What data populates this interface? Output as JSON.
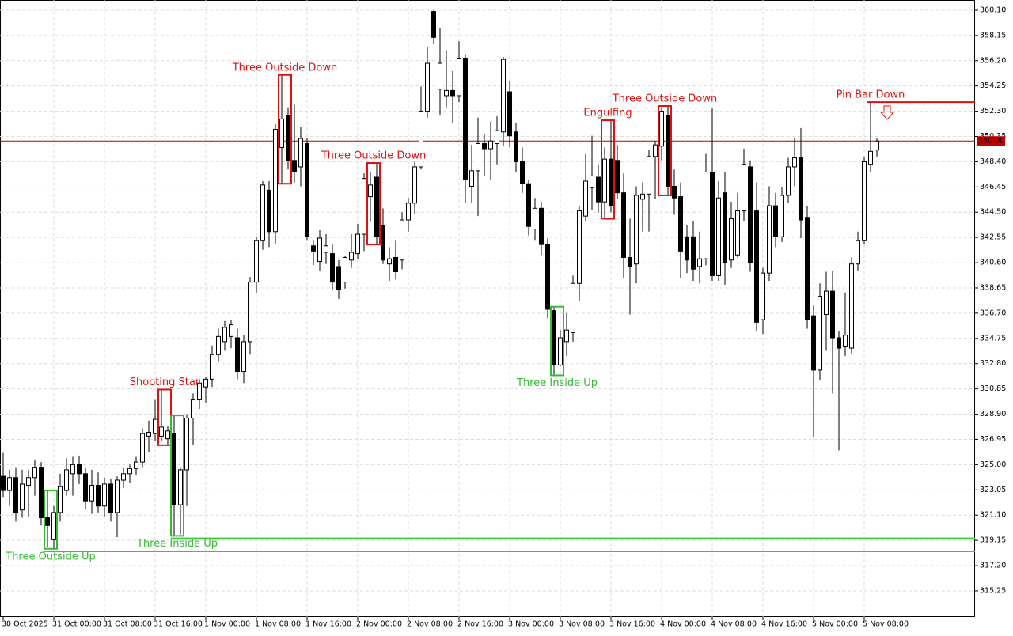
{
  "chart_data": {
    "type": "candlestick",
    "categories": [
      "30 Oct 2025",
      null,
      null,
      null,
      null,
      null,
      null,
      null,
      "31 Oct 00:00",
      null,
      null,
      null,
      null,
      null,
      null,
      null,
      "31 Oct 08:00",
      null,
      null,
      null,
      null,
      null,
      null,
      null,
      "31 Oct 16:00",
      null,
      null,
      null,
      null,
      null,
      null,
      null,
      "1 Nov 00:00",
      null,
      null,
      null,
      null,
      null,
      null,
      null,
      "1 Nov 08:00",
      null,
      null,
      null,
      null,
      null,
      null,
      null,
      "1 Nov 16:00",
      null,
      null,
      null,
      null,
      null,
      null,
      null,
      "2 Nov 00:00",
      null,
      null,
      null,
      null,
      null,
      null,
      null,
      "2 Nov 08:00",
      null,
      null,
      null,
      null,
      null,
      null,
      null,
      "2 Nov 16:00",
      null,
      null,
      null,
      null,
      null,
      null,
      null,
      "3 Nov 00:00",
      null,
      null,
      null,
      null,
      null,
      null,
      null,
      "3 Nov 08:00",
      null,
      null,
      null,
      null,
      null,
      null,
      null,
      "3 Nov 16:00",
      null,
      null,
      null,
      null,
      null,
      null,
      null,
      "4 Nov 00:00",
      null,
      null,
      null,
      null,
      null,
      null,
      null,
      "4 Nov 08:00",
      null,
      null,
      null,
      null,
      null,
      null,
      null,
      "4 Nov 16:00",
      null,
      null,
      null,
      null,
      null,
      null,
      null,
      "5 Nov 00:00",
      null,
      null,
      null,
      null,
      null,
      null,
      null,
      "5 Nov 08:00",
      null,
      null
    ],
    "open": [
      324.1,
      323.0,
      324.0,
      321.5,
      323.4,
      324.0,
      324.8,
      320.9,
      319.2,
      321.3,
      323.0,
      324.3,
      325.0,
      324.3,
      322.2,
      323.4,
      321.8,
      323.5,
      321.3,
      323.8,
      324.3,
      324.7,
      325.2,
      327.2,
      327.4,
      327.2,
      327.0,
      327.4,
      321.9,
      324.6,
      328.6,
      330.0,
      331.0,
      331.6,
      333.5,
      334.5,
      334.9,
      334.8,
      332.2,
      334.5,
      339.1,
      342.3,
      346.2,
      343.0,
      349.5,
      352.0,
      348.5,
      348.0,
      349.8,
      341.9,
      340.7,
      341.4,
      341.3,
      340.3,
      339.1,
      340.8,
      341.3,
      342.8,
      345.7,
      347.2,
      343.5,
      340.5,
      341.0,
      340.8,
      343.9,
      345.2,
      348.0,
      352.3,
      360.0,
      354.0,
      353.5,
      353.9,
      353.5,
      356.4,
      346.5,
      347.7,
      349.8,
      349.4,
      349.8,
      350.7,
      353.8,
      350.7,
      348.4,
      346.7,
      343.2,
      344.8,
      342.0,
      336.9,
      332.7,
      334.5,
      335.2,
      339.0,
      344.2,
      346.4,
      347.2,
      345.3,
      348.6,
      348.5,
      346.0,
      341.0,
      340.5,
      345.5,
      345.9,
      348.8,
      349.6,
      352.0,
      346.5,
      345.7,
      342.6,
      342.6,
      340.3,
      340.9,
      347.6,
      339.6,
      346.0,
      340.8,
      341.2,
      344.6,
      348.0,
      344.6,
      336.2,
      339.8,
      345.0,
      342.6,
      345.8,
      348.0,
      348.7,
      344.1,
      336.5,
      332.3,
      336.6,
      338.4,
      334.8,
      334.1,
      334.0,
      340.5,
      342.3,
      348.2,
      349.3
    ],
    "high": [
      325.9,
      324.6,
      324.8,
      324.6,
      324.6,
      325.4,
      325.2,
      323.0,
      321.8,
      324.3,
      325.5,
      325.6,
      325.7,
      324.8,
      324.6,
      324.4,
      324.0,
      323.9,
      324.1,
      324.8,
      325.0,
      325.6,
      327.8,
      328.4,
      330.0,
      330.8,
      328.0,
      328.8,
      324.8,
      328.9,
      330.5,
      331.6,
      331.8,
      334.2,
      335.5,
      336.1,
      336.2,
      335.5,
      335.0,
      339.5,
      342.6,
      346.9,
      346.9,
      351.3,
      355.1,
      352.6,
      352.8,
      351.1,
      350.2,
      342.3,
      343.1,
      342.8,
      342.0,
      340.8,
      341.1,
      342.8,
      343.6,
      347.5,
      347.6,
      348.3,
      344.8,
      341.8,
      342.3,
      344.5,
      345.6,
      348.4,
      354.2,
      357.3,
      360.1,
      358.7,
      357.0,
      355.4,
      357.7,
      356.7,
      349.7,
      351.8,
      350.5,
      351.5,
      351.9,
      356.5,
      354.6,
      351.4,
      349.5,
      347.0,
      345.6,
      345.3,
      342.5,
      337.2,
      335.4,
      336.7,
      339.6,
      345.0,
      349.0,
      350.4,
      348.2,
      349.5,
      351.6,
      349.7,
      347.5,
      344.0,
      346.5,
      346.8,
      349.3,
      350.0,
      352.6,
      352.7,
      347.8,
      346.8,
      343.5,
      343.8,
      343.0,
      349.0,
      352.5,
      346.9,
      347.6,
      345.3,
      346.0,
      349.4,
      348.5,
      346.8,
      340.2,
      346.5,
      346.0,
      346.4,
      348.7,
      350.2,
      351.0,
      345.0,
      337.3,
      339.0,
      339.9,
      340.0,
      335.3,
      338.3,
      341.0,
      343.0,
      348.8,
      353.0,
      350.2
    ],
    "low": [
      322.5,
      321.8,
      320.6,
      320.9,
      321.0,
      322.6,
      320.3,
      318.6,
      318.5,
      320.6,
      322.6,
      322.6,
      323.5,
      321.6,
      321.2,
      321.3,
      321.0,
      320.6,
      319.4,
      323.2,
      323.6,
      324.2,
      324.8,
      326.0,
      326.8,
      326.8,
      326.5,
      319.5,
      319.6,
      321.8,
      326.5,
      329.3,
      329.8,
      331.0,
      333.0,
      333.8,
      334.0,
      331.6,
      331.3,
      333.5,
      338.3,
      341.6,
      341.8,
      342.0,
      346.7,
      347.8,
      346.8,
      346.5,
      342.3,
      340.4,
      340.0,
      340.5,
      338.5,
      337.8,
      338.6,
      340.2,
      340.9,
      341.5,
      343.8,
      342.0,
      340.5,
      339.2,
      339.3,
      340.1,
      343.0,
      344.4,
      347.8,
      351.8,
      357.5,
      352.0,
      352.6,
      351.4,
      353.0,
      345.2,
      345.2,
      344.2,
      347.3,
      347.0,
      348.2,
      349.6,
      349.5,
      347.6,
      346.0,
      342.7,
      342.3,
      341.2,
      336.3,
      331.9,
      332.6,
      333.4,
      334.5,
      337.6,
      343.8,
      344.7,
      344.5,
      344.0,
      344.5,
      345.5,
      339.4,
      336.6,
      339.0,
      343.0,
      343.0,
      345.5,
      348.5,
      345.8,
      344.3,
      339.4,
      339.8,
      339.2,
      339.0,
      340.4,
      339.2,
      339.2,
      338.9,
      340.2,
      341.0,
      343.8,
      339.9,
      335.3,
      335.1,
      339.2,
      341.8,
      342.2,
      345.2,
      346.5,
      342.5,
      335.5,
      327.1,
      331.5,
      333.8,
      330.5,
      326.1,
      333.4,
      333.6,
      340.0,
      342.0,
      347.6,
      348.8
    ],
    "close": [
      323.0,
      324.0,
      321.3,
      323.5,
      324.0,
      324.8,
      320.9,
      320.3,
      321.3,
      323.3,
      324.6,
      325.0,
      324.3,
      322.2,
      323.4,
      321.8,
      323.5,
      321.3,
      323.8,
      324.3,
      324.7,
      325.2,
      327.4,
      327.5,
      328.5,
      327.9,
      327.6,
      321.9,
      324.6,
      328.6,
      330.0,
      331.3,
      331.6,
      333.5,
      334.9,
      335.6,
      335.8,
      332.2,
      334.5,
      339.1,
      342.3,
      346.6,
      343.0,
      350.9,
      351.7,
      348.5,
      347.6,
      350.2,
      342.6,
      341.5,
      342.5,
      341.9,
      339.1,
      338.5,
      341.0,
      341.4,
      342.8,
      347.1,
      346.6,
      342.6,
      340.8,
      340.9,
      339.9,
      343.9,
      345.2,
      348.0,
      352.3,
      356.0,
      358.0,
      356.0,
      353.9,
      353.5,
      356.4,
      347.0,
      347.7,
      349.8,
      349.4,
      350.0,
      350.8,
      356.3,
      350.4,
      348.4,
      346.7,
      343.4,
      344.8,
      342.0,
      337.0,
      332.7,
      334.8,
      335.4,
      339.0,
      344.6,
      346.9,
      347.3,
      345.3,
      348.6,
      345.0,
      346.0,
      341.0,
      340.3,
      345.8,
      345.9,
      348.8,
      349.7,
      352.3,
      346.5,
      345.6,
      341.5,
      340.8,
      340.1,
      340.9,
      347.6,
      339.6,
      345.6,
      340.6,
      344.0,
      344.6,
      348.2,
      340.6,
      336.0,
      339.8,
      345.0,
      342.6,
      345.8,
      348.0,
      348.7,
      343.9,
      336.2,
      332.3,
      338.0,
      338.4,
      334.8,
      334.0,
      335.0,
      340.5,
      342.3,
      348.4,
      349.2,
      350.0
    ],
    "ylim": [
      313.23,
      360.89
    ],
    "yticks": [
      {
        "value": 315.25,
        "label": "315.25"
      },
      {
        "value": 317.2,
        "label": "317.20"
      },
      {
        "value": 319.15,
        "label": "319.15"
      },
      {
        "value": 321.1,
        "label": "321.10"
      },
      {
        "value": 323.05,
        "label": "323.05"
      },
      {
        "value": 325,
        "label": "325.00"
      },
      {
        "value": 326.95,
        "label": "326.95"
      },
      {
        "value": 328.9,
        "label": "328.90"
      },
      {
        "value": 330.85,
        "label": "330.85"
      },
      {
        "value": 332.8,
        "label": "332.80"
      },
      {
        "value": 334.75,
        "label": "334.75"
      },
      {
        "value": 336.7,
        "label": "336.70"
      },
      {
        "value": 338.65,
        "label": "338.65"
      },
      {
        "value": 340.6,
        "label": "340.60"
      },
      {
        "value": 342.55,
        "label": "342.55"
      },
      {
        "value": 344.5,
        "label": "344.50"
      },
      {
        "value": 346.45,
        "label": "346.45"
      },
      {
        "value": 348.4,
        "label": "348.40"
      },
      {
        "value": 350.35,
        "label": "350.35"
      },
      {
        "value": 352.3,
        "label": "352.30"
      },
      {
        "value": 354.25,
        "label": "354.25"
      },
      {
        "value": 356.2,
        "label": "356.20"
      },
      {
        "value": 358.15,
        "label": "358.15"
      },
      {
        "value": 360.1,
        "label": "360.10"
      }
    ],
    "grid": true,
    "up_color": "#ffffff",
    "down_color": "#000000",
    "last_price": {
      "value": 350,
      "label": "350.00",
      "color": "#c00000"
    },
    "patterns": [
      {
        "label": "Three Outside Up",
        "candles": [
          7,
          8
        ],
        "direction": "up",
        "box": true
      },
      {
        "label": "Shooting Star",
        "candles": [
          25,
          26
        ],
        "direction": "down",
        "box": true
      },
      {
        "label": "Three Inside Up",
        "candles": [
          27,
          28
        ],
        "direction": "up",
        "box": true
      },
      {
        "label": "Three Outside Down",
        "candles": [
          44,
          45
        ],
        "direction": "down",
        "box": true
      },
      {
        "label": "Three Outside Down",
        "candles": [
          58,
          59
        ],
        "direction": "down",
        "box": true
      },
      {
        "label": "Three Inside Up",
        "candles": [
          87,
          88
        ],
        "direction": "up",
        "box": true
      },
      {
        "label": "Engulfing",
        "candles": [
          95,
          96
        ],
        "direction": "down",
        "box": true
      },
      {
        "label": "Three Outside Down",
        "candles": [
          104,
          105
        ],
        "direction": "down",
        "box": true
      },
      {
        "label": "Pin Bar Down",
        "candles": [
          137,
          137
        ],
        "direction": "down",
        "box": false
      }
    ],
    "levels": [
      {
        "value": 319.3,
        "from": 27,
        "color": "#33cc33"
      },
      {
        "value": 318.3,
        "from": 7,
        "color": "#33cc33"
      },
      {
        "value": 353.0,
        "from": 137,
        "color": "#e01010"
      }
    ],
    "pattern_colors": {
      "up": "#33bb33",
      "down": "#e01010"
    }
  }
}
